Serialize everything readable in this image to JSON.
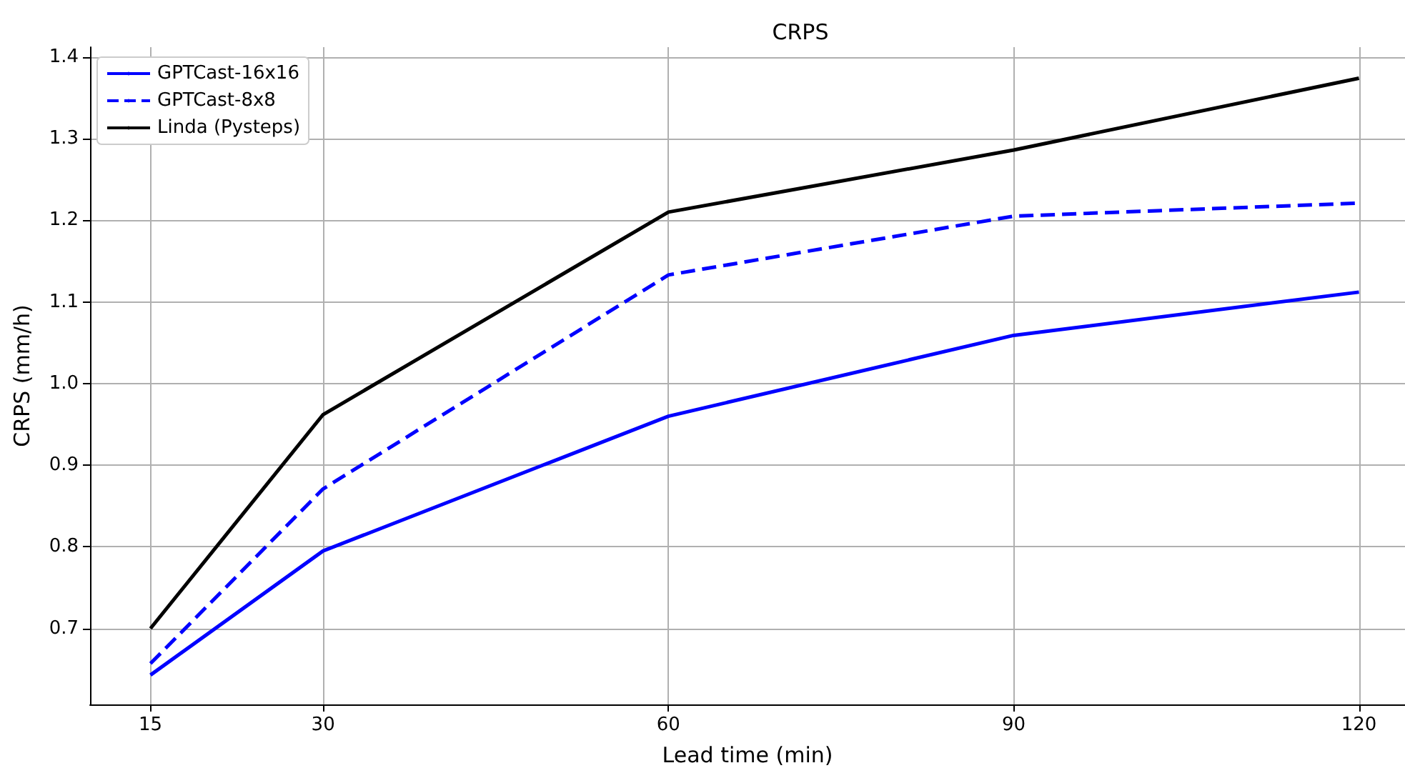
{
  "chart_data": {
    "type": "line",
    "title": "CRPS",
    "xlabel": "Lead time (min)",
    "ylabel": "CRPS (mm/h)",
    "x": [
      15,
      30,
      60,
      90,
      120
    ],
    "series": [
      {
        "name": "GPTCast-16x16",
        "color": "#0000ff",
        "values": [
          0.643,
          0.795,
          0.96,
          1.059,
          1.112
        ]
      },
      {
        "name": "GPTCast-8x8",
        "color": "#0000ff",
        "line_style": "dashed",
        "values": [
          0.657,
          0.871,
          1.133,
          1.205,
          1.221
        ]
      },
      {
        "name": "Linda (Pysteps)",
        "color": "#000000",
        "values": [
          0.7,
          0.962,
          1.21,
          1.286,
          1.374
        ]
      }
    ],
    "xlim": [
      9.75,
      124
    ],
    "ylim": [
      0.607,
      1.412
    ],
    "xticks": [
      15,
      30,
      60,
      90,
      120
    ],
    "yticks": [
      {
        "value": 0.7,
        "label": "0.7"
      },
      {
        "value": 0.8,
        "label": "0.8"
      },
      {
        "value": 0.9,
        "label": "0.9"
      },
      {
        "value": 1,
        "label": "1.0"
      },
      {
        "value": 1.1,
        "label": "1.1"
      },
      {
        "value": 1.2,
        "label": "1.2"
      },
      {
        "value": 1.3,
        "label": "1.3"
      },
      {
        "value": 1.4,
        "label": "1.4"
      }
    ],
    "grid": true,
    "legend": "top left",
    "marker": "none"
  }
}
